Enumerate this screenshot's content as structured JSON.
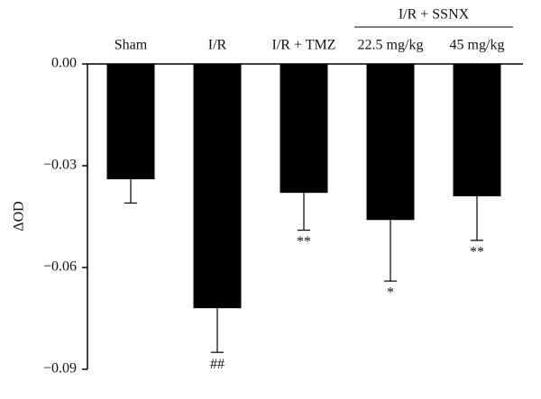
{
  "chart_data": {
    "type": "bar",
    "y_label": "ΔOD",
    "categories": [
      "Sham",
      "I/R",
      "I/R + TMZ",
      "22.5 mg/kg",
      "45 mg/kg"
    ],
    "group_label": "I/R + SSNX",
    "values": [
      -0.034,
      -0.072,
      -0.038,
      -0.046,
      -0.039
    ],
    "errors": [
      0.007,
      0.013,
      0.011,
      0.018,
      0.013
    ],
    "annotations": [
      null,
      "##",
      "**",
      "*",
      "**"
    ],
    "color": "#000000",
    "ylim": [
      -0.09,
      0
    ],
    "yticks": [
      {
        "value": 0,
        "label": "0.00"
      },
      {
        "value": -0.03,
        "label": "−0.03"
      },
      {
        "value": -0.06,
        "label": "−0.06"
      },
      {
        "value": -0.09,
        "label": "−0.09"
      }
    ]
  }
}
